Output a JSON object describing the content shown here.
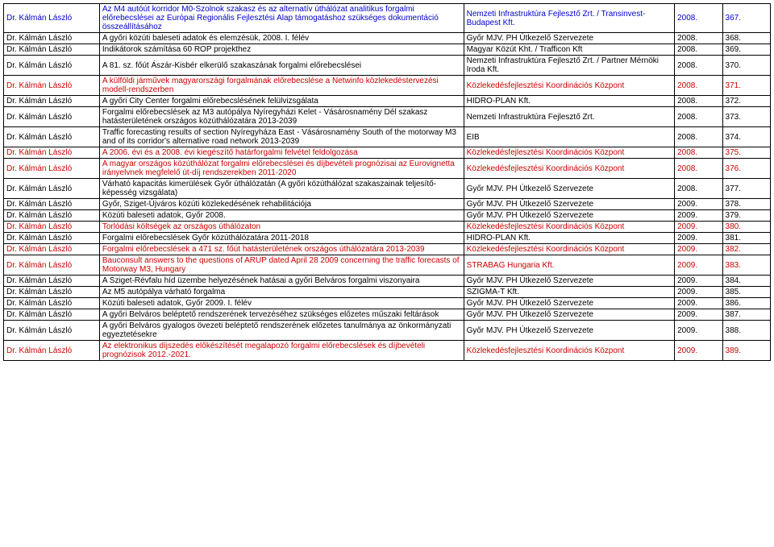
{
  "rows": [
    {
      "color": "blue",
      "author": "Dr. Kálmán László",
      "title": "Az M4 autóút korridor M0-Szolnok szakasz és az alternatív úthálózat analitikus forgalmi előrebecslései az Európai Regionális Fejlesztési Alap támogatáshoz szükséges dokumentáció összeállításához",
      "org": "Nemzeti Infrastruktúra Fejlesztő Zrt. / Transinvest-Budapest Kft.",
      "year": "2008.",
      "id": "367."
    },
    {
      "color": "",
      "author": "Dr. Kálmán László",
      "title": "A győri közúti baleseti adatok és elemzésük, 2008. I. félév",
      "org": "Győr MJV. PH Útkezelő Szervezete",
      "year": "2008.",
      "id": "368."
    },
    {
      "color": "",
      "author": "Dr. Kálmán László",
      "title": "Indikátorok számítása 60 ROP projekthez",
      "org": "Magyar Közút Kht. / Trafficon Kft",
      "year": "2008.",
      "id": "369."
    },
    {
      "color": "",
      "author": "Dr. Kálmán László",
      "title": "A 81. sz. főút Ászár-Kisbér elkerülő szakaszának forgalmi előrebecslései",
      "org": "Nemzeti Infrastruktúra Fejlesztő Zrt. / Partner Mérnöki Iroda Kft.",
      "year": "2008.",
      "id": "370."
    },
    {
      "color": "red",
      "author": "Dr. Kálmán László",
      "title": "A külföldi járművek magyarországi forgalmának előrebecslése a Netwinfo közlekedéstervezési modell-rendszerben",
      "org": "Közlekedésfejlesztési Koordinációs Központ",
      "year": "2008.",
      "id": "371."
    },
    {
      "color": "",
      "author": "Dr. Kálmán László",
      "title": "A győri City Center forgalmi előrebecslésének felülvizsgálata",
      "org": "HIDRO-PLAN Kft.",
      "year": "2008.",
      "id": "372."
    },
    {
      "color": "",
      "author": "Dr. Kálmán László",
      "title": "Forgalmi előrebecslések az M3 autópálya Nyíregyházi Kelet - Vásárosnamény Dél szakasz hatásterületének országos közúthálózatára 2013-2039",
      "org": "Nemzeti Infrastruktúra Fejlesztő Zrt.",
      "year": "2008.",
      "id": "373."
    },
    {
      "color": "",
      "author": "Dr. Kálmán László",
      "title": "Traffic forecasting results of section Nyíregyháza East - Vásárosnamény South of the motorway M3 and of its corridor's alternative road network 2013-2039",
      "org": "EIB",
      "year": "2008.",
      "id": "374."
    },
    {
      "color": "red",
      "author": "Dr. Kálmán László",
      "title": "A 2006. évi és a 2008. évi kiegészítő határforgalmi felvétel feldolgozása",
      "org": "Közlekedésfejlesztési Koordinációs Központ",
      "year": "2008.",
      "id": "375."
    },
    {
      "color": "red",
      "author": "Dr. Kálmán László",
      "title": "A magyar országos közúthálózat forgalmi előrebecslései és díjbevételi prognózisai az Eurovignetta irányelvnek megfelelő út-díj rendszerekben 2011-2020",
      "org": "Közlekedésfejlesztési Koordinációs Központ",
      "year": "2008.",
      "id": "376."
    },
    {
      "color": "",
      "author": "Dr. Kálmán László",
      "title": "Várható kapacitás kimerülések Győr úthálózatán (A győri közúthálózat szakaszainak teljesítő-képesség vizsgálata)",
      "org": "Győr MJV. PH Útkezelő Szervezete",
      "year": "2008.",
      "id": "377."
    },
    {
      "color": "",
      "author": "Dr. Kálmán László",
      "title": "Győr, Sziget-Újváros közúti közlekedésének rehabilitációja",
      "org": "Győr MJV. PH Útkezelő Szervezete",
      "year": "2009.",
      "id": "378."
    },
    {
      "color": "",
      "author": "Dr. Kálmán László",
      "title": "Közúti baleseti adatok, Győr 2008.",
      "org": "Győr MJV. PH Útkezelő Szervezete",
      "year": "2009.",
      "id": "379."
    },
    {
      "color": "red",
      "author": "Dr. Kálmán László",
      "title": "Torlódási költségek az országos úthálózaton",
      "org": "Közlekedésfejlesztési Koordinációs Központ",
      "year": "2009.",
      "id": "380."
    },
    {
      "color": "",
      "author": "Dr. Kálmán László",
      "title": "Forgalmi előrebecslések Győr közúthálózatára 2011-2018",
      "org": "HIDRO-PLAN Kft.",
      "year": "2009.",
      "id": "381."
    },
    {
      "color": "red",
      "author": "Dr. Kálmán László",
      "title": "Forgalmi előrebecslések a 471 sz. főút hatásterületének országos úthálózatára 2013-2039",
      "org": "Közlekedésfejlesztési Koordinációs Központ",
      "year": "2009.",
      "id": "382."
    },
    {
      "color": "red",
      "author": "Dr. Kálmán László",
      "title": "Bauconsult answers to the questions of ARUP dated April 28 2009 concerning the traffic forecasts of Motorway M3, Hungary",
      "org": "STRABAG Hungaria Kft.",
      "year": "2009.",
      "id": "383."
    },
    {
      "color": "",
      "author": "Dr. Kálmán László",
      "title": "A Sziget-Révfalu híd üzembe helyezésének hatásai a győri Belváros forgalmi viszonyaira",
      "org": "Győr MJV. PH Útkezelő Szervezete",
      "year": "2009.",
      "id": "384."
    },
    {
      "color": "",
      "author": "Dr. Kálmán László",
      "title": "Az M5 autópálya várható forgalma",
      "org": "SZIGMA-T Kft.",
      "year": "2009.",
      "id": "385."
    },
    {
      "color": "",
      "author": "Dr. Kálmán László",
      "title": "Közúti baleseti adatok, Győr 2009. I. félév",
      "org": "Győr MJV. PH Útkezelő Szervezete",
      "year": "2009.",
      "id": "386."
    },
    {
      "color": "",
      "author": "Dr. Kálmán László",
      "title": "A győri Belváros beléptető rendszerének tervezéséhez szükséges előzetes műszaki feltárások",
      "org": "Győr MJV. PH Útkezelő Szervezete",
      "year": "2009.",
      "id": "387."
    },
    {
      "color": "",
      "author": "Dr. Kálmán László",
      "title": "A győri Belváros gyalogos övezeti beléptető rendszerének előzetes tanulmánya az önkormányzati egyeztetésekre",
      "org": "Győr MJV. PH Útkezelő Szervezete",
      "year": "2009.",
      "id": "388."
    },
    {
      "color": "red",
      "author": "Dr. Kálmán László",
      "title": "Az elektronikus díjszedés előkészítését megalapozó forgalmi előrebecslések és díjbevételi prognózisok 2012.-2021.",
      "org": "Közlekedésfejlesztési Koordinációs Központ",
      "year": "2009.",
      "id": "389."
    }
  ]
}
